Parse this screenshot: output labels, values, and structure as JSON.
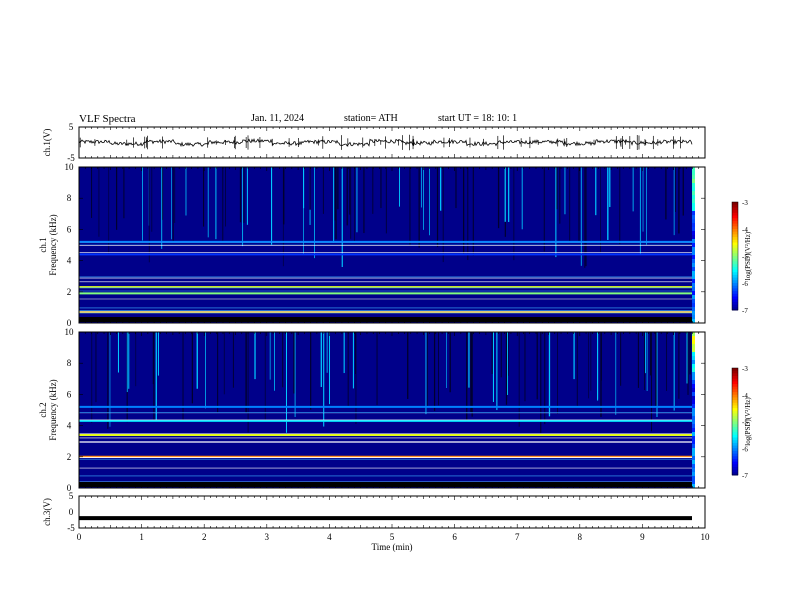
{
  "header": {
    "title": "VLF  Spectra",
    "date": "Jan.  11,  2024",
    "station": "station= ATH",
    "start": "start  UT  =    18: 10: 1"
  },
  "chart_data": [
    {
      "type": "line",
      "panel": "ch1-waveform",
      "ylabel": "ch.1(V)",
      "ylim": [
        -5,
        5
      ],
      "yticks": [
        "5",
        "-5"
      ],
      "xlim": [
        0,
        10
      ],
      "series": [
        {
          "values": [
            0.2,
            -0.4,
            0.3,
            -0.6,
            0.1,
            0.5,
            -0.3,
            0.2,
            -0.5,
            0.4,
            -0.2,
            0.3,
            -0.4,
            0.1,
            0.2,
            -0.3,
            0.4,
            -0.1,
            0.2,
            -0.5
          ]
        }
      ]
    },
    {
      "type": "heatmap",
      "panel": "ch1-spectrogram",
      "ylabel": "ch.1\nFrequency  (kHz)",
      "xlim": [
        0,
        9.8
      ],
      "ylim": [
        0,
        10
      ],
      "yticks": [
        "0",
        "2",
        "4",
        "6",
        "8",
        "10"
      ],
      "colorbar": {
        "label": "log(PSD)(V²/Hz)",
        "range": [
          -7,
          -3
        ],
        "ticks": [
          "-3",
          "-4",
          "-5",
          "-6",
          "-7"
        ]
      },
      "bands": [
        {
          "freq_khz": 0.7,
          "level": -4.3
        },
        {
          "freq_khz": 1.9,
          "level": -5.0
        },
        {
          "freq_khz": 2.3,
          "level": -4.6
        },
        {
          "freq_khz": 4.4,
          "level": -6.3
        },
        {
          "freq_khz": 5.2,
          "level": -6.0
        }
      ]
    },
    {
      "type": "heatmap",
      "panel": "ch2-spectrogram",
      "ylabel": "ch.2\nFrequency  (kHz)",
      "xlim": [
        0,
        9.8
      ],
      "ylim": [
        0,
        10
      ],
      "yticks": [
        "0",
        "2",
        "4",
        "6",
        "8",
        "10"
      ],
      "colorbar": {
        "label": "log(PSD)(V²/Hz)",
        "range": [
          -7,
          -3
        ],
        "ticks": [
          "-3",
          "-4",
          "-5",
          "-6",
          "-7"
        ]
      },
      "bands": [
        {
          "freq_khz": 2.0,
          "level": -4.0
        },
        {
          "freq_khz": 3.4,
          "level": -4.6
        },
        {
          "freq_khz": 4.3,
          "level": -5.6
        },
        {
          "freq_khz": 5.2,
          "level": -6.0
        }
      ]
    },
    {
      "type": "line",
      "panel": "ch3-waveform",
      "ylabel": "ch.3(V)",
      "ylim": [
        -5,
        5
      ],
      "yticks": [
        "5",
        "0",
        "-5"
      ],
      "xlim": [
        0,
        10
      ],
      "xlabel": "Time  (min)",
      "xticks": [
        "0",
        "1",
        "2",
        "3",
        "4",
        "5",
        "6",
        "7",
        "8",
        "9",
        "10"
      ],
      "series": [
        {
          "values": [
            -1.9,
            -1.9
          ]
        }
      ]
    }
  ]
}
